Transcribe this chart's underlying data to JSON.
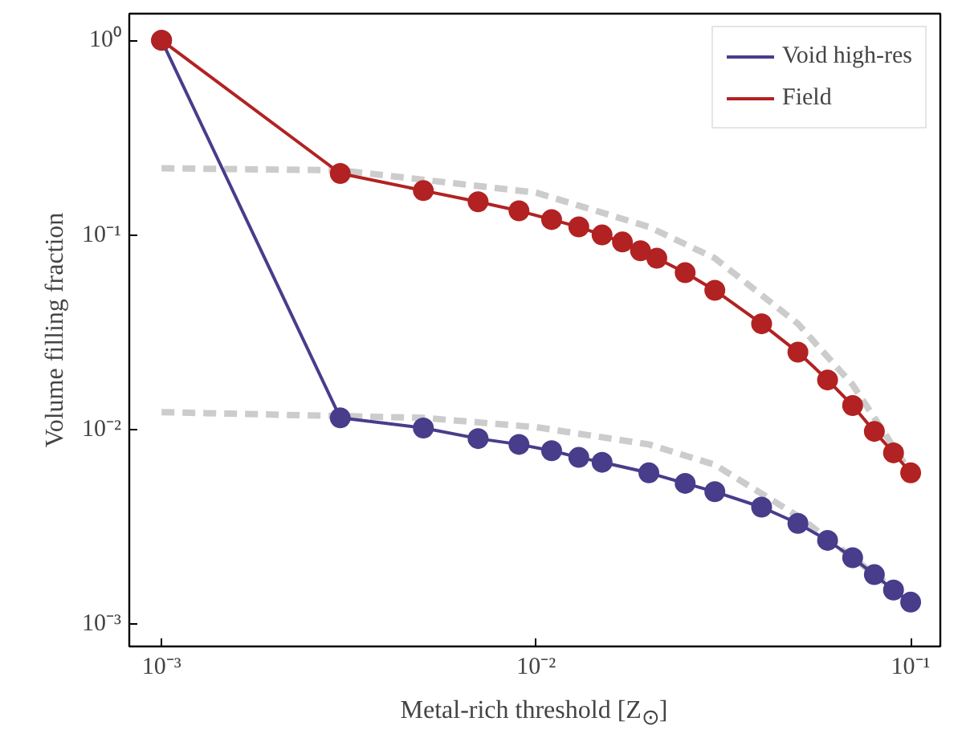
{
  "chart_data": {
    "type": "line",
    "xlabel": "Metal-rich threshold [Z$_{⊙}$]",
    "ylabel": "Volume filling fraction",
    "log": "xy",
    "marker": "circle",
    "legend": "top right",
    "grid": false,
    "xlim": [
      0.00082,
      0.12
    ],
    "ylim": [
      0.00077,
      1.37
    ],
    "xticks": [
      {
        "value": 0.001,
        "label": "10⁻³"
      },
      {
        "value": 0.01,
        "label": "10⁻²"
      },
      {
        "value": 0.1,
        "label": "10⁻¹"
      }
    ],
    "yticks": [
      {
        "value": 0.001,
        "label": "10⁻³"
      },
      {
        "value": 0.01,
        "label": "10⁻²"
      },
      {
        "value": 0.1,
        "label": "10⁻¹"
      },
      {
        "value": 1,
        "label": "10⁰"
      }
    ],
    "series": [
      {
        "color": "#cccccc",
        "marker": "none",
        "line_style": "dashed",
        "x": [
          0.001,
          0.003,
          0.01,
          0.02,
          0.03,
          0.05,
          0.07,
          0.1
        ],
        "values": [
          0.22,
          0.215,
          0.165,
          0.11,
          0.076,
          0.035,
          0.017,
          0.006
        ]
      },
      {
        "color": "#cccccc",
        "marker": "none",
        "line_style": "dashed",
        "x": [
          0.001,
          0.005,
          0.01,
          0.02,
          0.03,
          0.05,
          0.07,
          0.1
        ],
        "values": [
          0.0123,
          0.0115,
          0.0103,
          0.0084,
          0.0066,
          0.0036,
          0.0022,
          0.0013
        ]
      },
      {
        "name": "Void high-res",
        "color": "#483d8b",
        "x": [
          0.001,
          0.003,
          0.005,
          0.007,
          0.009,
          0.011,
          0.013,
          0.015,
          0.02,
          0.025,
          0.03,
          0.04,
          0.05,
          0.06,
          0.07,
          0.08,
          0.09,
          0.1
        ],
        "values": [
          1.0,
          0.0115,
          0.0102,
          0.009,
          0.0084,
          0.0078,
          0.0072,
          0.0068,
          0.006,
          0.0053,
          0.0048,
          0.004,
          0.0033,
          0.0027,
          0.0022,
          0.0018,
          0.0015,
          0.0013
        ]
      },
      {
        "name": "Field",
        "color": "#b22222",
        "x": [
          0.001,
          0.003,
          0.005,
          0.007,
          0.009,
          0.011,
          0.013,
          0.015,
          0.017,
          0.019,
          0.021,
          0.025,
          0.03,
          0.04,
          0.05,
          0.06,
          0.07,
          0.08,
          0.09,
          0.1
        ],
        "values": [
          1.0,
          0.207,
          0.169,
          0.148,
          0.133,
          0.12,
          0.11,
          0.1,
          0.092,
          0.083,
          0.076,
          0.064,
          0.052,
          0.035,
          0.025,
          0.018,
          0.0133,
          0.0098,
          0.0076,
          0.006
        ]
      }
    ]
  }
}
